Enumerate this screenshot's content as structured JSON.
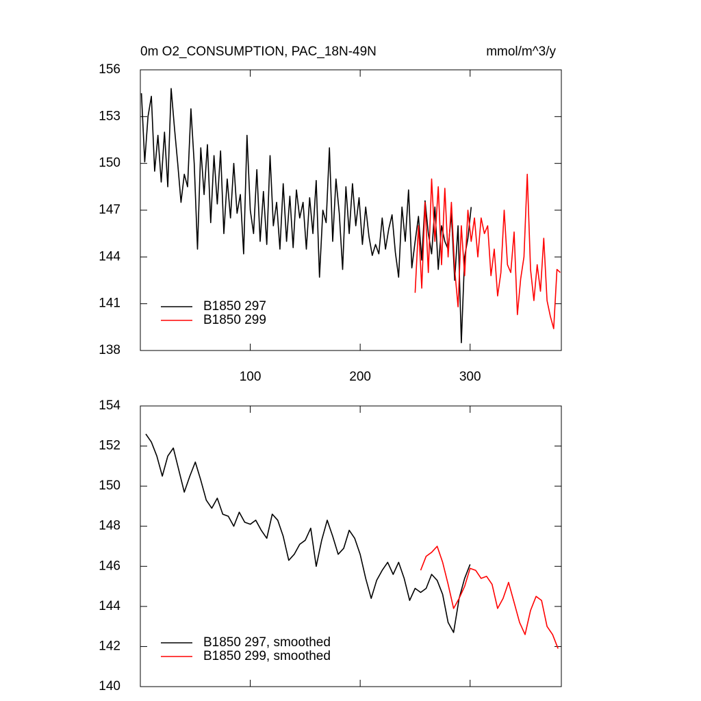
{
  "chart_data": [
    {
      "type": "line",
      "title": "0m O2_CONSUMPTION, PAC_18N-49N",
      "units_label": "mmol/m^3/y",
      "xlim": [
        0,
        383
      ],
      "xticks": [
        100,
        200,
        300
      ],
      "xtick_labels": true,
      "ylim": [
        138,
        156
      ],
      "yticks": [
        138,
        141,
        144,
        147,
        150,
        153,
        156
      ],
      "legend": "lower left",
      "series": [
        {
          "name": "B1850 297",
          "color": "#000000",
          "x": [
            1,
            4,
            7,
            10,
            13,
            16,
            19,
            22,
            25,
            28,
            31,
            34,
            37,
            40,
            43,
            46,
            49,
            52,
            55,
            58,
            61,
            64,
            67,
            70,
            73,
            76,
            79,
            82,
            85,
            88,
            91,
            94,
            97,
            100,
            103,
            106,
            109,
            112,
            115,
            118,
            121,
            124,
            127,
            130,
            133,
            136,
            139,
            142,
            145,
            148,
            151,
            154,
            157,
            160,
            163,
            166,
            169,
            172,
            175,
            178,
            181,
            184,
            187,
            190,
            193,
            196,
            199,
            202,
            205,
            208,
            211,
            214,
            217,
            220,
            223,
            226,
            229,
            232,
            235,
            238,
            241,
            244,
            247,
            250,
            253,
            256,
            259,
            262,
            265,
            268,
            271,
            274,
            277,
            280,
            283,
            286,
            289,
            292,
            295,
            298,
            301
          ],
          "values": [
            154.5,
            150.1,
            153,
            154.3,
            149.5,
            151.8,
            148.8,
            152,
            148.5,
            154.8,
            152.3,
            150,
            147.5,
            149.3,
            148.5,
            153.5,
            150,
            144.5,
            151,
            148,
            151.2,
            146.2,
            150.5,
            147.4,
            150.8,
            145.5,
            149,
            146.5,
            150,
            146.8,
            148,
            144.2,
            151.8,
            147,
            145.5,
            149.6,
            145,
            148.2,
            144.8,
            150.5,
            146,
            147.5,
            144.5,
            148.7,
            145,
            147.9,
            144.6,
            148.3,
            146.5,
            147.5,
            144.5,
            147.8,
            145.5,
            148.9,
            142.7,
            147,
            146.2,
            151,
            145,
            149,
            146.8,
            143.2,
            148.5,
            145.5,
            148.7,
            146,
            147.8,
            144.8,
            147.2,
            145.3,
            144.1,
            144.8,
            144.2,
            146.5,
            144.5,
            145.8,
            146.7,
            144.3,
            142.7,
            147.2,
            145,
            148.3,
            143.3,
            145,
            146.6,
            143.8,
            147.6,
            145.5,
            144.2,
            147.2,
            143.2,
            146,
            145,
            144.5,
            146.8,
            142.5,
            146,
            138.5,
            144,
            145.2,
            147.2
          ]
        },
        {
          "name": "B1850 299",
          "color": "#ff0000",
          "x": [
            250,
            253,
            256,
            259,
            262,
            265,
            268,
            271,
            274,
            277,
            280,
            283,
            286,
            289,
            292,
            295,
            298,
            301,
            304,
            307,
            310,
            313,
            316,
            319,
            322,
            325,
            328,
            331,
            334,
            337,
            340,
            343,
            346,
            349,
            352,
            355,
            358,
            361,
            364,
            367,
            370,
            373,
            376,
            379,
            382
          ],
          "values": [
            141.7,
            146,
            142,
            147.5,
            143,
            149,
            145,
            148.5,
            143.5,
            148.4,
            144,
            147.5,
            143.2,
            140.8,
            146,
            142.8,
            147,
            145,
            146.5,
            144,
            146.5,
            145.5,
            146,
            142.8,
            144.5,
            141.5,
            143,
            147,
            143.5,
            143,
            145.6,
            140.3,
            142.6,
            144,
            149.3,
            143.2,
            141.2,
            143.5,
            141.8,
            145.2,
            141.2,
            140.2,
            139.4,
            143.2,
            143
          ]
        }
      ]
    },
    {
      "type": "line",
      "xlim": [
        0,
        383
      ],
      "xticks": [
        100,
        200,
        300
      ],
      "xtick_labels": false,
      "ylim": [
        140,
        154
      ],
      "yticks": [
        140,
        142,
        144,
        146,
        148,
        150,
        152,
        154
      ],
      "legend": "lower left",
      "series": [
        {
          "name": "B1850 297, smoothed",
          "color": "#000000",
          "x": [
            5,
            10,
            15,
            20,
            25,
            30,
            35,
            40,
            45,
            50,
            55,
            60,
            65,
            70,
            75,
            80,
            85,
            90,
            95,
            100,
            105,
            110,
            115,
            120,
            125,
            130,
            135,
            140,
            145,
            150,
            155,
            160,
            165,
            170,
            175,
            180,
            185,
            190,
            195,
            200,
            205,
            210,
            215,
            220,
            225,
            230,
            235,
            240,
            245,
            250,
            255,
            260,
            265,
            270,
            275,
            280,
            285,
            290,
            295,
            300
          ],
          "values": [
            152.6,
            152.2,
            151.5,
            150.5,
            151.5,
            151.9,
            150.8,
            149.7,
            150.5,
            151.2,
            150.3,
            149.3,
            148.9,
            149.4,
            148.6,
            148.5,
            148,
            148.7,
            148.2,
            148.1,
            148.3,
            147.8,
            147.4,
            148.6,
            148.3,
            147.5,
            146.3,
            146.6,
            147.1,
            147.3,
            147.9,
            146,
            147.3,
            148.3,
            147.5,
            146.6,
            146.9,
            147.8,
            147.4,
            146.6,
            145.4,
            144.4,
            145.3,
            145.8,
            146.2,
            145.6,
            146.2,
            145.4,
            144.3,
            144.9,
            144.7,
            144.9,
            145.6,
            145.3,
            144.6,
            143.2,
            142.7,
            144.4,
            145.4,
            146.1
          ]
        },
        {
          "name": "B1850 299, smoothed",
          "color": "#ff0000",
          "x": [
            255,
            260,
            265,
            270,
            275,
            280,
            285,
            290,
            295,
            300,
            305,
            310,
            315,
            320,
            325,
            330,
            335,
            340,
            345,
            350,
            355,
            360,
            365,
            370,
            375,
            380
          ],
          "values": [
            145.8,
            146.5,
            146.7,
            147,
            146.2,
            145.1,
            143.9,
            144.4,
            145,
            145.9,
            145.8,
            145.4,
            145.5,
            145.1,
            143.9,
            144.4,
            145.2,
            144.2,
            143.2,
            142.6,
            143.8,
            144.5,
            144.3,
            143,
            142.6,
            141.9
          ]
        }
      ]
    }
  ]
}
